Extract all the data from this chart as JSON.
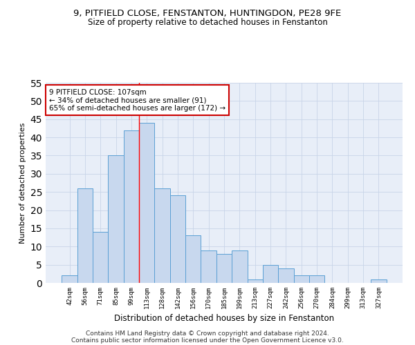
{
  "title1": "9, PITFIELD CLOSE, FENSTANTON, HUNTINGDON, PE28 9FE",
  "title2": "Size of property relative to detached houses in Fenstanton",
  "xlabel": "Distribution of detached houses by size in Fenstanton",
  "ylabel": "Number of detached properties",
  "bar_color": "#c8d8ee",
  "bar_edge_color": "#5a9fd4",
  "categories": [
    "42sqm",
    "56sqm",
    "71sqm",
    "85sqm",
    "99sqm",
    "113sqm",
    "128sqm",
    "142sqm",
    "156sqm",
    "170sqm",
    "185sqm",
    "199sqm",
    "213sqm",
    "227sqm",
    "242sqm",
    "256sqm",
    "270sqm",
    "284sqm",
    "299sqm",
    "313sqm",
    "327sqm"
  ],
  "values": [
    2,
    26,
    14,
    35,
    42,
    44,
    26,
    24,
    13,
    9,
    8,
    9,
    1,
    5,
    4,
    2,
    2,
    0,
    0,
    0,
    1
  ],
  "ylim": [
    0,
    55
  ],
  "yticks": [
    0,
    5,
    10,
    15,
    20,
    25,
    30,
    35,
    40,
    45,
    50,
    55
  ],
  "vline_x": 4.5,
  "annotation_text": "9 PITFIELD CLOSE: 107sqm\n← 34% of detached houses are smaller (91)\n65% of semi-detached houses are larger (172) →",
  "annotation_box_color": "#ffffff",
  "annotation_box_edge_color": "#cc0000",
  "footer1": "Contains HM Land Registry data © Crown copyright and database right 2024.",
  "footer2": "Contains public sector information licensed under the Open Government Licence v3.0.",
  "grid_color": "#c8d4e8",
  "background_color": "#e8eef8"
}
